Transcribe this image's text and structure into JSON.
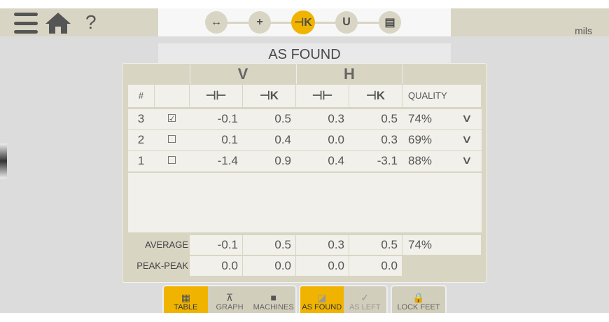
{
  "header": {
    "units": "mils",
    "steps": [
      {
        "icon": "dimensions-icon",
        "glyph": "↔",
        "active": false
      },
      {
        "icon": "crosshair-icon",
        "glyph": "+",
        "active": false
      },
      {
        "icon": "measure-icon",
        "glyph": "⊣K",
        "active": true
      },
      {
        "icon": "magnet-icon",
        "glyph": "U",
        "active": false
      },
      {
        "icon": "report-icon",
        "glyph": "▤",
        "active": false
      }
    ]
  },
  "title": "AS FOUND",
  "table": {
    "group_headers": [
      "V",
      "H"
    ],
    "col_hash": "#",
    "col_quality": "QUALITY",
    "rows": [
      {
        "num": "3",
        "checked": true,
        "v1": "-0.1",
        "v2": "0.5",
        "h1": "0.3",
        "h2": "0.5",
        "quality": "74%"
      },
      {
        "num": "2",
        "checked": false,
        "v1": "0.1",
        "v2": "0.4",
        "h1": "0.0",
        "h2": "0.3",
        "quality": "69%"
      },
      {
        "num": "1",
        "checked": false,
        "v1": "-1.4",
        "v2": "0.9",
        "h1": "0.4",
        "h2": "-3.1",
        "quality": "88%"
      }
    ],
    "average": {
      "label": "AVERAGE",
      "v1": "-0.1",
      "v2": "0.5",
      "h1": "0.3",
      "h2": "0.5",
      "quality": "74%"
    },
    "peak": {
      "label": "PEAK-PEAK",
      "v1": "0.0",
      "v2": "0.0",
      "h1": "0.0",
      "h2": "0.0"
    }
  },
  "tabs": {
    "view": [
      {
        "label": "TABLE",
        "active": true
      },
      {
        "label": "GRAPH",
        "active": false
      },
      {
        "label": "MACHINES",
        "active": false
      }
    ],
    "mode": [
      {
        "label": "AS FOUND",
        "active": true
      },
      {
        "label": "AS LEFT",
        "active": false
      }
    ],
    "lock": {
      "label": "LOCK FEET"
    }
  },
  "colors": {
    "accent": "#f0b400",
    "beige": "#d9d5c4",
    "cell": "#f1f0ea"
  }
}
